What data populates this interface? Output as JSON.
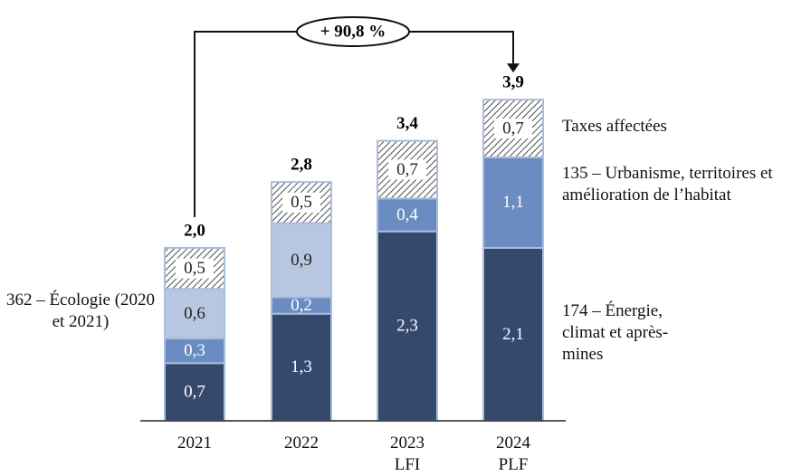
{
  "chart_data": {
    "type": "bar",
    "stacked": true,
    "categories": [
      "2021",
      "2022",
      "2023 LFI",
      "2024 PLF"
    ],
    "series": [
      {
        "name": "174 – Énergie, climat et après-mines",
        "color": "#34496b",
        "values": [
          0.7,
          1.3,
          2.3,
          2.1
        ],
        "value_labels": [
          "0,7",
          "1,3",
          "2,3",
          "2,1"
        ]
      },
      {
        "name": "135 – Urbanisme, territoires et amélioration de l’habitat",
        "color": "#6b8cc0",
        "values": [
          0.3,
          0.2,
          0.4,
          1.1
        ],
        "value_labels": [
          "0,3",
          "0,2",
          "0,4",
          "1,1"
        ]
      },
      {
        "name": "362 – Écologie (2020 et 2021)",
        "color": "#b8c7e1",
        "values": [
          0.6,
          0.9,
          null,
          null
        ],
        "value_labels": [
          "0,6",
          "0,9",
          null,
          null
        ]
      },
      {
        "name": "Taxes affectées",
        "color": "hatch",
        "values": [
          0.5,
          0.5,
          0.7,
          0.7
        ],
        "value_labels": [
          "0,5",
          "0,5",
          "0,7",
          "0,7"
        ]
      }
    ],
    "totals": [
      2.0,
      2.8,
      3.4,
      3.9
    ],
    "total_labels": [
      "2,0",
      "2,8",
      "3,4",
      "3,9"
    ],
    "annotation": "+ 90,8 %",
    "ylim": [
      0,
      4
    ]
  }
}
